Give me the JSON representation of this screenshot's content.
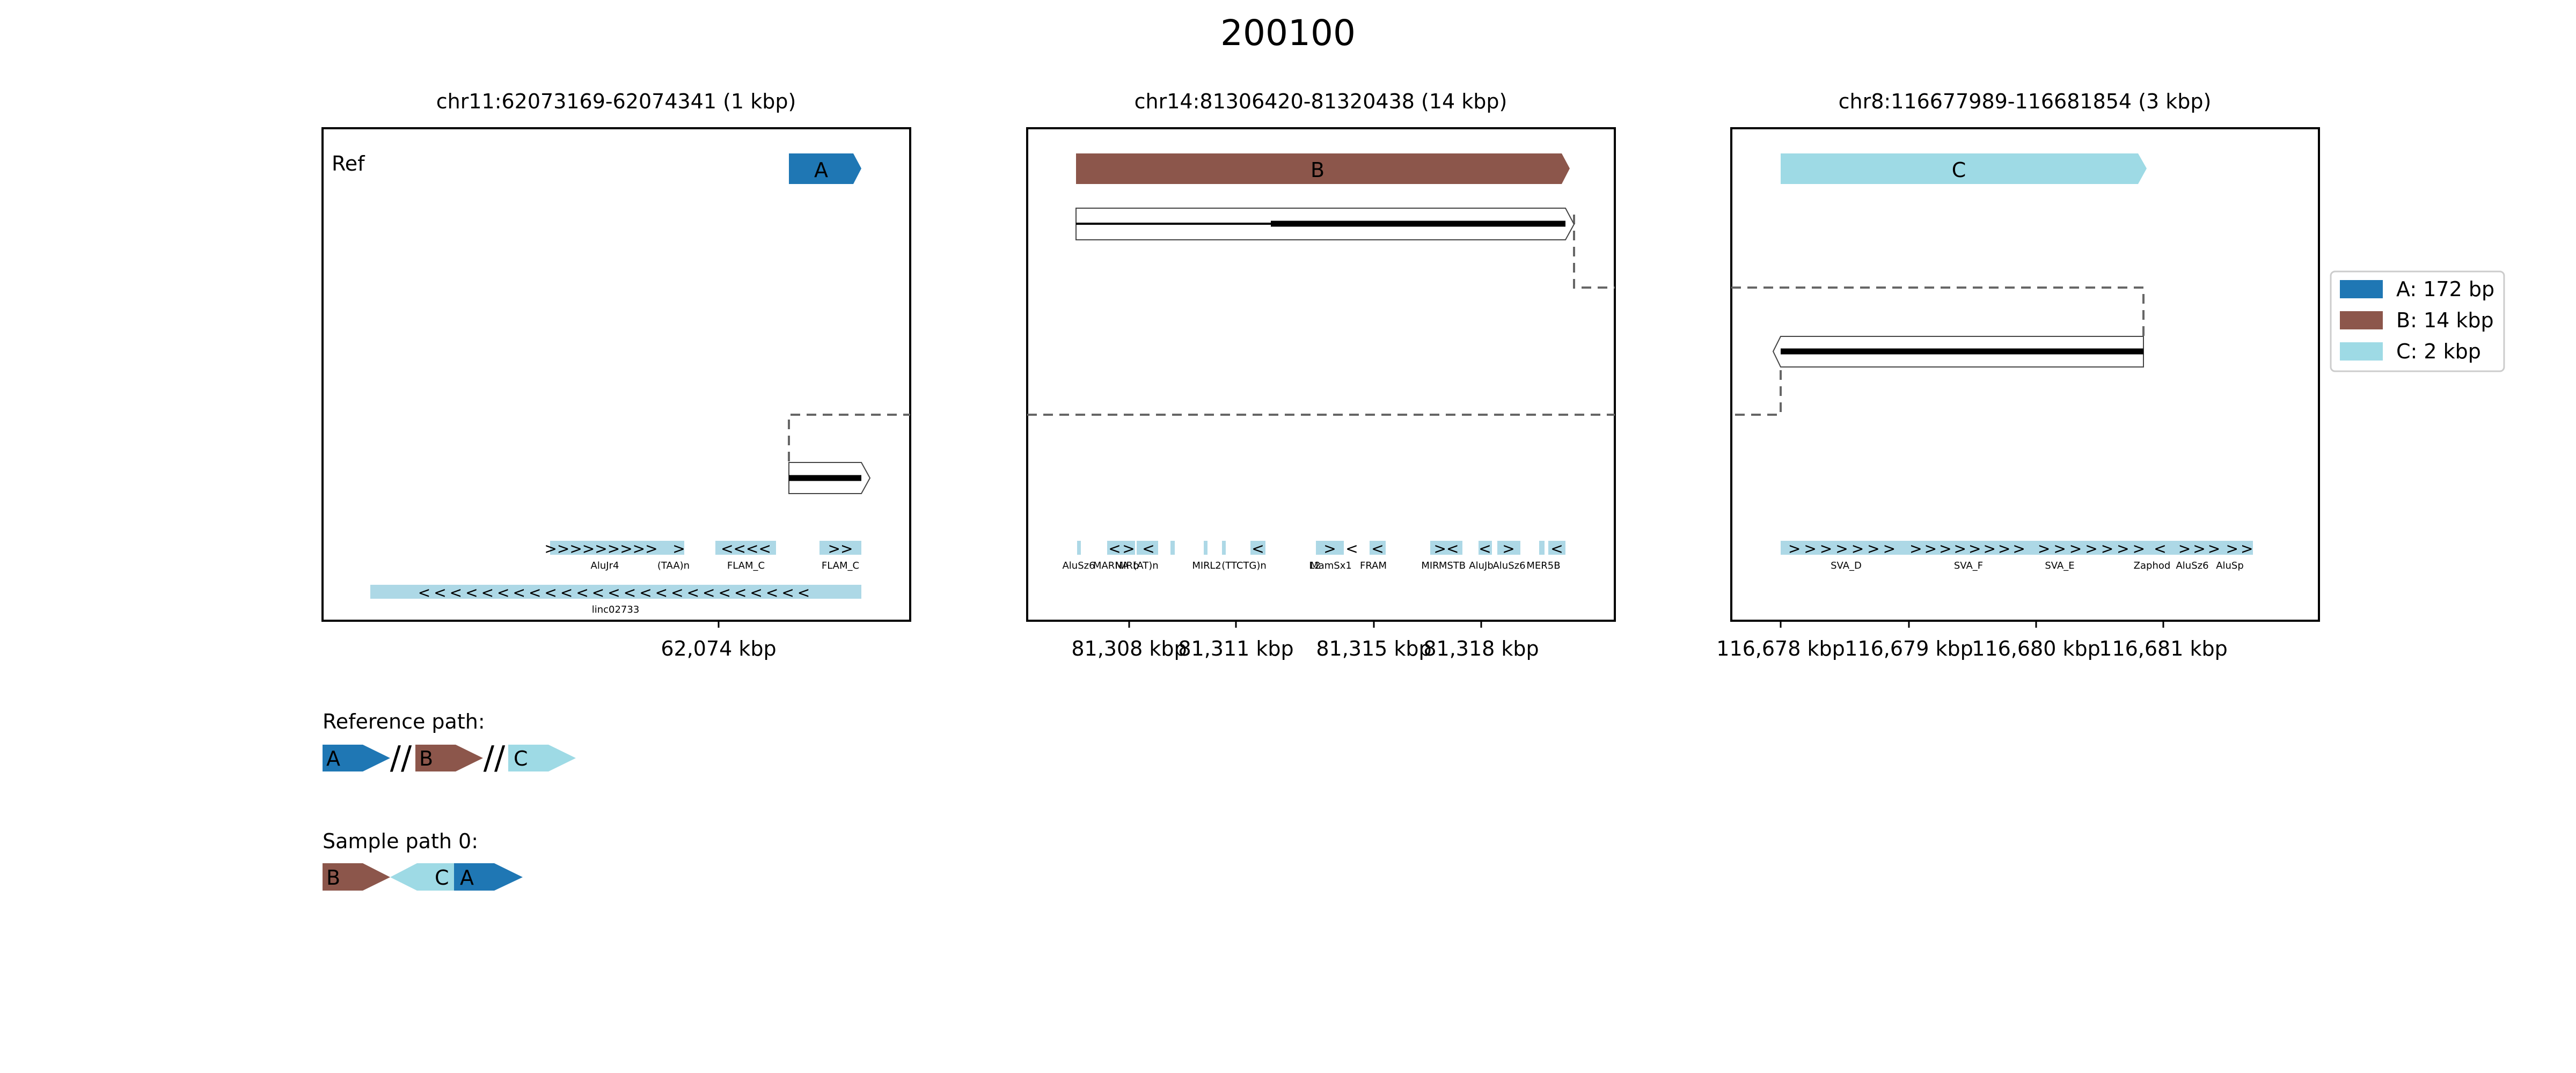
{
  "title": "200100",
  "colors": {
    "A": "#1f77b4",
    "B": "#8c564b",
    "C": "#9edae5",
    "repeat": "#add8e6",
    "frame": "#000000",
    "dashed": "#666666"
  },
  "panels": [
    {
      "title": "chr11:62073169-62074341 (1 kbp)",
      "corner_label": "Ref",
      "ticks": [
        "62,074 kbp"
      ],
      "segment": {
        "name": "A",
        "color_key": "A"
      },
      "repeats_row1": [
        {
          "label": "AluJr4",
          "arrows": ">>>>>>>>>"
        },
        {
          "label": "(TAA)n",
          "arrows": ">"
        },
        {
          "label": "FLAM_C",
          "arrows": "<<<<"
        },
        {
          "label": "FLAM_C",
          "arrows": ">>"
        }
      ],
      "repeats_row2": [
        {
          "label": "linc02733",
          "arrows": "<<<<<<<<<<<<<<<<<<<<<<<<<"
        }
      ]
    },
    {
      "title": "chr14:81306420-81320438 (14 kbp)",
      "corner_label": "",
      "ticks": [
        "81,308 kbp",
        "81,311 kbp",
        "81,315 kbp",
        "81,318 kbp"
      ],
      "segment": {
        "name": "B",
        "color_key": "B"
      },
      "repeats_row1": [
        {
          "label": "AluSz6",
          "arrows": ""
        },
        {
          "label": "MARNA",
          "arrows": "<"
        },
        {
          "label": "MIRb",
          "arrows": ">"
        },
        {
          "label": "(AT)n",
          "arrows": "<"
        },
        {
          "label": "MIR",
          "arrows": ""
        },
        {
          "label": "L2",
          "arrows": ""
        },
        {
          "label": "(TTCTG)n",
          "arrows": "<"
        },
        {
          "label": "L2",
          "arrows": ""
        },
        {
          "label": "MamSx1",
          "arrows": ">"
        },
        {
          "label": "FRAM",
          "arrows": "<"
        },
        {
          "label": "MIR",
          "arrows": "<"
        },
        {
          "label": "MSTB",
          "arrows": "><"
        },
        {
          "label": "AluJb",
          "arrows": "<"
        },
        {
          "label": "AluSz6",
          "arrows": ">"
        },
        {
          "label": "MER5B",
          "arrows": "<"
        }
      ],
      "repeats_row2": []
    },
    {
      "title": "chr8:116677989-116681854 (3 kbp)",
      "corner_label": "",
      "ticks": [
        "116,678 kbp",
        "116,679 kbp",
        "116,680 kbp",
        "116,681 kbp"
      ],
      "segment": {
        "name": "C",
        "color_key": "C"
      },
      "repeats_row1": [
        {
          "label": "SVA_D",
          "arrows": ">>>>>>>"
        },
        {
          "label": "SVA_F",
          "arrows": ">>>>>>>>"
        },
        {
          "label": "SVA_E",
          "arrows": ">>>>>>>"
        },
        {
          "label": "Zaphod",
          "arrows": "<"
        },
        {
          "label": "AluSz6",
          "arrows": ">>>"
        },
        {
          "label": "AluSp",
          "arrows": ">>"
        }
      ],
      "repeats_row2": []
    }
  ],
  "legend": [
    {
      "label": "A: 172 bp",
      "color_key": "A"
    },
    {
      "label": "B: 14 kbp",
      "color_key": "B"
    },
    {
      "label": "C: 2 kbp",
      "color_key": "C"
    }
  ],
  "reference_path": {
    "label": "Reference path:",
    "items": [
      {
        "type": "seg",
        "name": "A",
        "color_key": "A",
        "dir": "fwd"
      },
      {
        "type": "break",
        "text": "//"
      },
      {
        "type": "seg",
        "name": "B",
        "color_key": "B",
        "dir": "fwd"
      },
      {
        "type": "break",
        "text": "//"
      },
      {
        "type": "seg",
        "name": "C",
        "color_key": "C",
        "dir": "fwd"
      }
    ]
  },
  "sample_path": {
    "label": "Sample path 0:",
    "items": [
      {
        "type": "seg",
        "name": "B",
        "color_key": "B",
        "dir": "fwd"
      },
      {
        "type": "seg",
        "name": "C",
        "color_key": "C",
        "dir": "rev"
      },
      {
        "type": "seg",
        "name": "A",
        "color_key": "A",
        "dir": "fwd"
      }
    ]
  }
}
